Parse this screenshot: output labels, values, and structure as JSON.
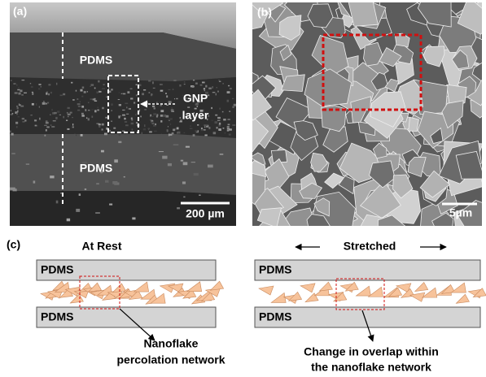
{
  "panel_a": {
    "label": "(a)",
    "top_label": "PDMS",
    "bottom_label": "PDMS",
    "callout": [
      "GNP",
      "layer"
    ],
    "scale_bar": "200 µm"
  },
  "panel_b": {
    "label": "(b)",
    "scale_bar": "5µm"
  },
  "panel_c": {
    "label": "(c)",
    "rest": {
      "title": "At Rest",
      "top_layer": "PDMS",
      "bottom_layer": "PDMS",
      "annotation": [
        "Nanoflake",
        "percolation network"
      ]
    },
    "stretched": {
      "title": "Stretched",
      "top_layer": "PDMS",
      "bottom_layer": "PDMS",
      "annotation": [
        "Change in overlap within",
        "the nanoflake network"
      ]
    }
  }
}
